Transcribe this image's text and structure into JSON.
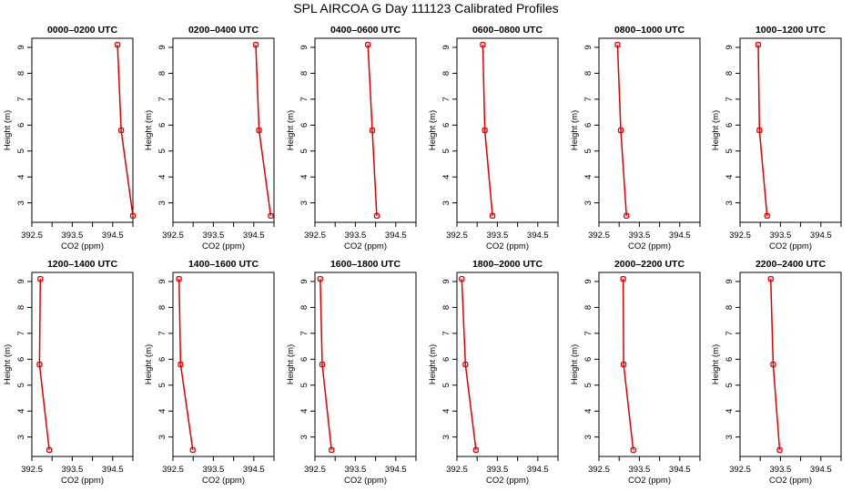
{
  "figure": {
    "title": "SPL AIRCOA G  Day 111123  Calibrated Profiles"
  },
  "colors": {
    "series": "#dd0000",
    "axes": "#000000",
    "background": "#ffffff"
  },
  "chart_data": [
    {
      "type": "line",
      "title": "0000–0200 UTC",
      "xlabel": "CO2 (ppm)",
      "ylabel": "Height (m)",
      "xlim": [
        392.5,
        395.0
      ],
      "ylim": [
        2.25,
        9.35
      ],
      "xticks": [
        "392.5",
        "393.5",
        "394.5"
      ],
      "yticks": [
        "3",
        "4",
        "5",
        "6",
        "7",
        "8",
        "9"
      ],
      "grid": false,
      "legend": "none",
      "x": [
        394.62,
        394.71,
        395.0
      ],
      "y": [
        9.1,
        5.8,
        2.5
      ]
    },
    {
      "type": "line",
      "title": "0200–0400 UTC",
      "xlabel": "CO2 (ppm)",
      "ylabel": "Height (m)",
      "xlim": [
        392.5,
        395.0
      ],
      "ylim": [
        2.25,
        9.35
      ],
      "xticks": [
        "392.5",
        "393.5",
        "394.5"
      ],
      "yticks": [
        "3",
        "4",
        "5",
        "6",
        "7",
        "8",
        "9"
      ],
      "grid": false,
      "legend": "none",
      "x": [
        394.55,
        394.63,
        394.92
      ],
      "y": [
        9.1,
        5.8,
        2.5
      ]
    },
    {
      "type": "line",
      "title": "0400–0600 UTC",
      "xlabel": "CO2 (ppm)",
      "ylabel": "Height (m)",
      "xlim": [
        392.5,
        395.0
      ],
      "ylim": [
        2.25,
        9.35
      ],
      "xticks": [
        "392.5",
        "393.5",
        "394.5"
      ],
      "yticks": [
        "3",
        "4",
        "5",
        "6",
        "7",
        "8",
        "9"
      ],
      "grid": false,
      "legend": "none",
      "x": [
        393.81,
        393.92,
        394.03
      ],
      "y": [
        9.1,
        5.8,
        2.5
      ]
    },
    {
      "type": "line",
      "title": "0600–0800 UTC",
      "xlabel": "CO2 (ppm)",
      "ylabel": "Height (m)",
      "xlim": [
        392.5,
        395.0
      ],
      "ylim": [
        2.25,
        9.35
      ],
      "xticks": [
        "392.5",
        "393.5",
        "394.5"
      ],
      "yticks": [
        "3",
        "4",
        "5",
        "6",
        "7",
        "8",
        "9"
      ],
      "grid": false,
      "legend": "none",
      "x": [
        393.14,
        393.19,
        393.38
      ],
      "y": [
        9.1,
        5.8,
        2.5
      ]
    },
    {
      "type": "line",
      "title": "0800–1000 UTC",
      "xlabel": "CO2 (ppm)",
      "ylabel": "Height (m)",
      "xlim": [
        392.5,
        395.0
      ],
      "ylim": [
        2.25,
        9.35
      ],
      "xticks": [
        "392.5",
        "393.5",
        "394.5"
      ],
      "yticks": [
        "3",
        "4",
        "5",
        "6",
        "7",
        "8",
        "9"
      ],
      "grid": false,
      "legend": "none",
      "x": [
        392.96,
        393.04,
        393.18
      ],
      "y": [
        9.1,
        5.8,
        2.5
      ]
    },
    {
      "type": "line",
      "title": "1000–1200 UTC",
      "xlabel": "CO2 (ppm)",
      "ylabel": "Height (m)",
      "xlim": [
        392.5,
        395.0
      ],
      "ylim": [
        2.25,
        9.35
      ],
      "xticks": [
        "392.5",
        "393.5",
        "394.5"
      ],
      "yticks": [
        "3",
        "4",
        "5",
        "6",
        "7",
        "8",
        "9"
      ],
      "grid": false,
      "legend": "none",
      "x": [
        392.95,
        392.98,
        393.17
      ],
      "y": [
        9.1,
        5.8,
        2.5
      ]
    },
    {
      "type": "line",
      "title": "1200–1400 UTC",
      "xlabel": "CO2 (ppm)",
      "ylabel": "Height (m)",
      "xlim": [
        392.5,
        395.0
      ],
      "ylim": [
        2.25,
        9.35
      ],
      "xticks": [
        "392.5",
        "393.5",
        "394.5"
      ],
      "yticks": [
        "3",
        "4",
        "5",
        "6",
        "7",
        "8",
        "9"
      ],
      "grid": false,
      "legend": "none",
      "x": [
        392.71,
        392.69,
        392.93
      ],
      "y": [
        9.1,
        5.8,
        2.5
      ]
    },
    {
      "type": "line",
      "title": "1400–1600 UTC",
      "xlabel": "CO2 (ppm)",
      "ylabel": "Height (m)",
      "xlim": [
        392.5,
        395.0
      ],
      "ylim": [
        2.25,
        9.35
      ],
      "xticks": [
        "392.5",
        "393.5",
        "394.5"
      ],
      "yticks": [
        "3",
        "4",
        "5",
        "6",
        "7",
        "8",
        "9"
      ],
      "grid": false,
      "legend": "none",
      "x": [
        392.65,
        392.69,
        392.99
      ],
      "y": [
        9.1,
        5.8,
        2.5
      ]
    },
    {
      "type": "line",
      "title": "1600–1800 UTC",
      "xlabel": "CO2 (ppm)",
      "ylabel": "Height (m)",
      "xlim": [
        392.5,
        395.0
      ],
      "ylim": [
        2.25,
        9.35
      ],
      "xticks": [
        "392.5",
        "393.5",
        "394.5"
      ],
      "yticks": [
        "3",
        "4",
        "5",
        "6",
        "7",
        "8",
        "9"
      ],
      "grid": false,
      "legend": "none",
      "x": [
        392.63,
        392.68,
        392.91
      ],
      "y": [
        9.1,
        5.8,
        2.5
      ]
    },
    {
      "type": "line",
      "title": "1800–2000 UTC",
      "xlabel": "CO2 (ppm)",
      "ylabel": "Height (m)",
      "xlim": [
        392.5,
        395.0
      ],
      "ylim": [
        2.25,
        9.35
      ],
      "xticks": [
        "392.5",
        "393.5",
        "394.5"
      ],
      "yticks": [
        "3",
        "4",
        "5",
        "6",
        "7",
        "8",
        "9"
      ],
      "grid": false,
      "legend": "none",
      "x": [
        392.62,
        392.71,
        392.97
      ],
      "y": [
        9.1,
        5.8,
        2.5
      ]
    },
    {
      "type": "line",
      "title": "2000–2200 UTC",
      "xlabel": "CO2 (ppm)",
      "ylabel": "Height (m)",
      "xlim": [
        392.5,
        395.0
      ],
      "ylim": [
        2.25,
        9.35
      ],
      "xticks": [
        "392.5",
        "393.5",
        "394.5"
      ],
      "yticks": [
        "3",
        "4",
        "5",
        "6",
        "7",
        "8",
        "9"
      ],
      "grid": false,
      "legend": "none",
      "x": [
        393.1,
        393.11,
        393.35
      ],
      "y": [
        9.1,
        5.8,
        2.5
      ]
    },
    {
      "type": "line",
      "title": "2200–2400 UTC",
      "xlabel": "CO2 (ppm)",
      "ylabel": "Height (m)",
      "xlim": [
        392.5,
        395.0
      ],
      "ylim": [
        2.25,
        9.35
      ],
      "xticks": [
        "392.5",
        "393.5",
        "394.5"
      ],
      "yticks": [
        "3",
        "4",
        "5",
        "6",
        "7",
        "8",
        "9"
      ],
      "grid": false,
      "legend": "none",
      "x": [
        393.26,
        393.32,
        393.48
      ],
      "y": [
        9.1,
        5.8,
        2.5
      ]
    }
  ]
}
